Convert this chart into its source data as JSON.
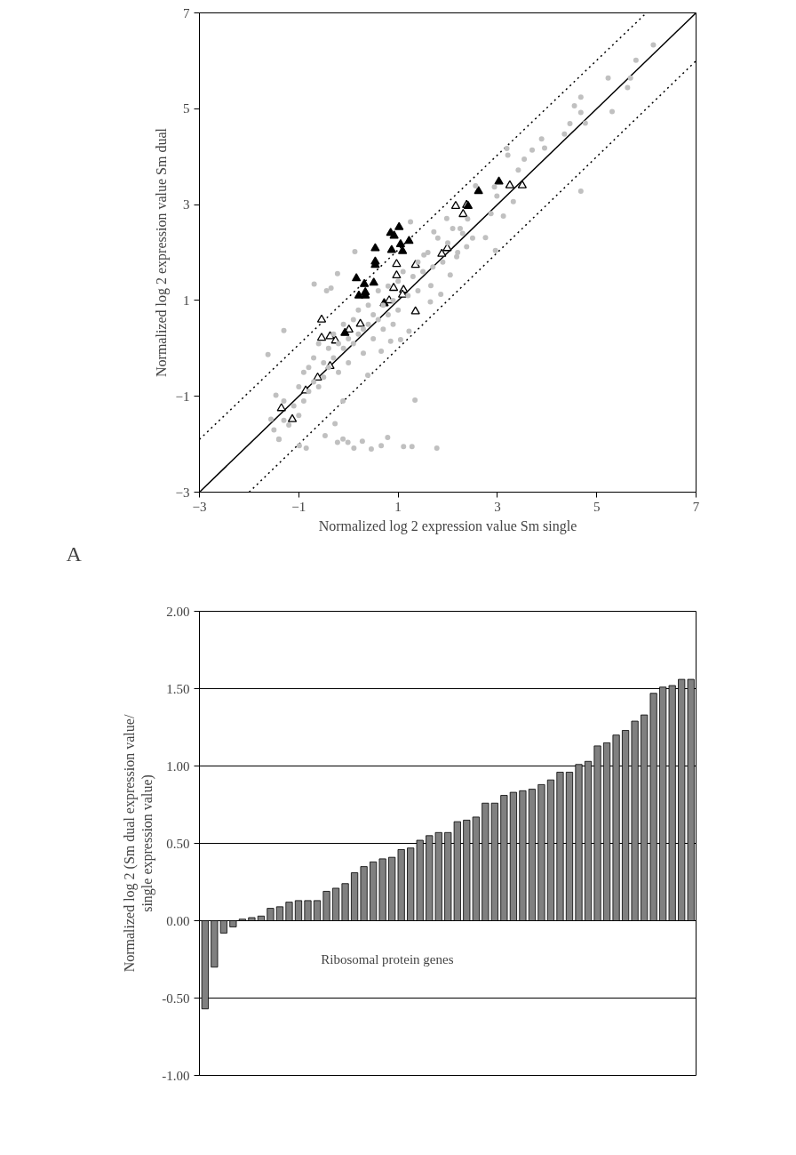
{
  "chart_data": [
    {
      "type": "scatter",
      "xlabel": "Normalized log 2 expression value Sm single",
      "ylabel": "Normalized log 2 expression value Sm dual",
      "annotations": [
        "A"
      ],
      "xlim": [
        -3,
        7
      ],
      "ylim": [
        -3,
        7
      ],
      "xticks": [
        -3,
        -1,
        1,
        3,
        5,
        7
      ],
      "yticks": [
        -3,
        -1,
        1,
        3,
        5,
        7
      ],
      "series": [
        {
          "type": "scatter",
          "marker": "circle",
          "color": "#c0c0c0",
          "x": [
            6.14,
            5.79,
            5.23,
            5.68,
            5.62,
            5.31,
            4.68,
            4.55,
            4.68,
            4.77,
            4.46,
            4.35,
            4.68,
            3.89,
            3.95,
            3.7,
            3.54,
            3.42,
            3.19,
            3.21,
            3.32,
            3.12,
            2.99,
            2.94,
            2.76,
            2.96,
            2.56,
            2.87,
            2.38,
            2.18,
            2.05,
            1.86,
            1.66,
            1.65,
            1.52,
            1.72,
            1.98,
            2.25,
            1.25,
            1.22,
            1.05,
            0.85,
            0.66,
            0.39,
            0.13,
            -0.22,
            -0.69,
            -0.44,
            -0.35,
            -1.3,
            -1.62,
            -1.46,
            -1.56,
            -1.4,
            -0.99,
            -0.85,
            -0.47,
            -0.27,
            -0.11,
            -0.22,
            -0.11,
            -0.01,
            0.11,
            0.28,
            0.46,
            0.66,
            0.79,
            1.11,
            1.28,
            1.78,
            1.34,
            -1.5,
            -1.4,
            -1.3,
            -1.3,
            -1.2,
            -1.1,
            -1.0,
            -1.0,
            -0.9,
            -0.9,
            -0.8,
            -0.8,
            -0.7,
            -0.7,
            -0.6,
            -0.6,
            -0.5,
            -0.5,
            -0.4,
            -0.4,
            -0.3,
            -0.3,
            -0.2,
            -0.2,
            -0.1,
            -0.1,
            0.0,
            0.0,
            0.1,
            0.1,
            0.2,
            0.2,
            0.3,
            0.3,
            0.4,
            0.4,
            0.5,
            0.5,
            0.6,
            0.6,
            0.7,
            0.7,
            0.8,
            0.8,
            0.9,
            0.9,
            1.0,
            1.0,
            1.1,
            1.2,
            1.3,
            1.4,
            1.4,
            1.5,
            1.6,
            1.7,
            1.8,
            1.9,
            2.0,
            2.1,
            2.2,
            2.3,
            2.4,
            2.5
          ],
          "values": [
            6.33,
            6.01,
            5.64,
            5.64,
            5.44,
            4.94,
            5.24,
            5.06,
            4.92,
            4.7,
            4.69,
            4.47,
            3.28,
            4.37,
            4.18,
            4.14,
            3.95,
            3.72,
            4.17,
            4.03,
            3.06,
            2.76,
            3.18,
            3.37,
            2.31,
            2.04,
            3.39,
            2.81,
            2.12,
            1.91,
            1.53,
            1.13,
            1.31,
            0.97,
            1.95,
            2.43,
            2.71,
            2.5,
            2.64,
            0.36,
            0.18,
            0.15,
            -0.06,
            -0.56,
            2.02,
            1.56,
            1.34,
            1.2,
            1.26,
            0.37,
            -0.13,
            -0.98,
            -1.48,
            -1.89,
            -2.03,
            -2.08,
            -1.82,
            -1.57,
            -1.1,
            -1.96,
            -1.89,
            -1.96,
            -2.08,
            -1.94,
            -2.1,
            -2.03,
            -1.86,
            -2.05,
            -2.05,
            -2.08,
            -1.08,
            -1.7,
            -1.9,
            -1.5,
            -1.1,
            -1.6,
            -1.2,
            -1.4,
            -0.8,
            -1.1,
            -0.5,
            -0.9,
            -0.4,
            -0.7,
            -0.2,
            -0.8,
            0.1,
            -0.3,
            -0.6,
            0.0,
            -0.4,
            0.3,
            -0.2,
            0.1,
            -0.5,
            0.5,
            0.0,
            0.2,
            -0.3,
            0.6,
            0.1,
            0.8,
            0.3,
            0.4,
            -0.1,
            0.9,
            0.5,
            0.7,
            0.2,
            1.2,
            0.6,
            0.9,
            0.4,
            1.3,
            0.7,
            1.0,
            0.5,
            1.4,
            0.8,
            1.6,
            1.1,
            1.5,
            1.8,
            1.2,
            1.6,
            2.0,
            1.7,
            2.3,
            1.8,
            2.2,
            2.5,
            2.0,
            2.4,
            2.7,
            2.3
          ]
        },
        {
          "type": "scatter",
          "marker": "triangle",
          "color": "#000000",
          "x": [
            3.03,
            2.62,
            2.41,
            1.02,
            0.85,
            0.92,
            1.22,
            1.05,
            1.09,
            0.87,
            0.54,
            0.54,
            0.54,
            0.16,
            0.32,
            0.51,
            0.34,
            0.21,
            0.34,
            0.72,
            -0.07
          ],
          "values": [
            3.48,
            3.28,
            2.97,
            2.53,
            2.41,
            2.35,
            2.24,
            2.17,
            2.03,
            2.05,
            2.09,
            1.81,
            1.74,
            1.46,
            1.34,
            1.37,
            1.17,
            1.1,
            1.1,
            0.94,
            0.32
          ]
        },
        {
          "type": "scatter",
          "marker": "triangle",
          "color": "#ffffff",
          "x": [
            -1.35,
            -1.13,
            -0.86,
            -0.62,
            -0.37,
            -0.54,
            -0.54,
            -0.37,
            -0.26,
            0.01,
            0.24,
            0.82,
            0.91,
            1.11,
            1.09,
            0.97,
            0.97,
            1.35,
            1.35,
            1.88,
            1.99,
            2.16,
            2.31,
            2.38,
            3.25,
            3.5
          ],
          "values": [
            -1.25,
            -1.48,
            -0.88,
            -0.61,
            -0.37,
            0.6,
            0.22,
            0.25,
            0.16,
            0.39,
            0.51,
            1.0,
            1.26,
            1.22,
            1.12,
            1.52,
            1.76,
            1.74,
            0.77,
            1.97,
            2.09,
            2.97,
            2.8,
            2.99,
            3.4,
            3.4
          ]
        },
        {
          "type": "line",
          "line_style": "solid",
          "color": "#000000",
          "x": [
            -3,
            7
          ],
          "values": [
            -3,
            7
          ]
        },
        {
          "type": "line",
          "line_style": "dotted",
          "color": "#000000",
          "x": [
            -3,
            6
          ],
          "values": [
            -1.9,
            7
          ]
        },
        {
          "type": "line",
          "line_style": "dotted",
          "color": "#000000",
          "x": [
            -2,
            7
          ],
          "values": [
            -3,
            6
          ]
        }
      ]
    },
    {
      "type": "bar",
      "ylabel": "Normalized log 2 (Sm dual expression value/\nsingle expression value)",
      "annotations": [
        "Ribosomal protein genes"
      ],
      "tick_labels": "y",
      "grid": "y",
      "color": "#808080",
      "ylim": [
        -1,
        2
      ],
      "yticks": [
        {
          "value": -1,
          "label": "-1.00"
        },
        {
          "value": -0.5,
          "label": "-0.50"
        },
        {
          "value": 0,
          "label": "0.00"
        },
        {
          "value": 0.5,
          "label": "0.50"
        },
        {
          "value": 1,
          "label": "1.00"
        },
        {
          "value": 1.5,
          "label": "1.50"
        },
        {
          "value": 2,
          "label": "2.00"
        }
      ],
      "categories": [
        null,
        null,
        null,
        null,
        null,
        null,
        null,
        null,
        null,
        null,
        null,
        null,
        null,
        null,
        null,
        null,
        null,
        null,
        null,
        null,
        null,
        null,
        null,
        null,
        null,
        null,
        null,
        null,
        null,
        null,
        null,
        null,
        null,
        null,
        null,
        null,
        null,
        null,
        null,
        null,
        null,
        null,
        null,
        null,
        null,
        null,
        null,
        null,
        null,
        null,
        null,
        null,
        null
      ],
      "values": [
        -0.57,
        -0.3,
        -0.08,
        -0.04,
        0.01,
        0.02,
        0.03,
        0.08,
        0.09,
        0.12,
        0.13,
        0.13,
        0.13,
        0.19,
        0.21,
        0.24,
        0.31,
        0.35,
        0.38,
        0.4,
        0.41,
        0.46,
        0.47,
        0.52,
        0.55,
        0.57,
        0.57,
        0.64,
        0.65,
        0.67,
        0.76,
        0.76,
        0.81,
        0.83,
        0.84,
        0.85,
        0.88,
        0.91,
        0.96,
        0.96,
        1.01,
        1.03,
        1.13,
        1.15,
        1.2,
        1.23,
        1.29,
        1.33,
        1.47,
        1.51,
        1.52,
        1.56,
        1.56
      ]
    }
  ]
}
